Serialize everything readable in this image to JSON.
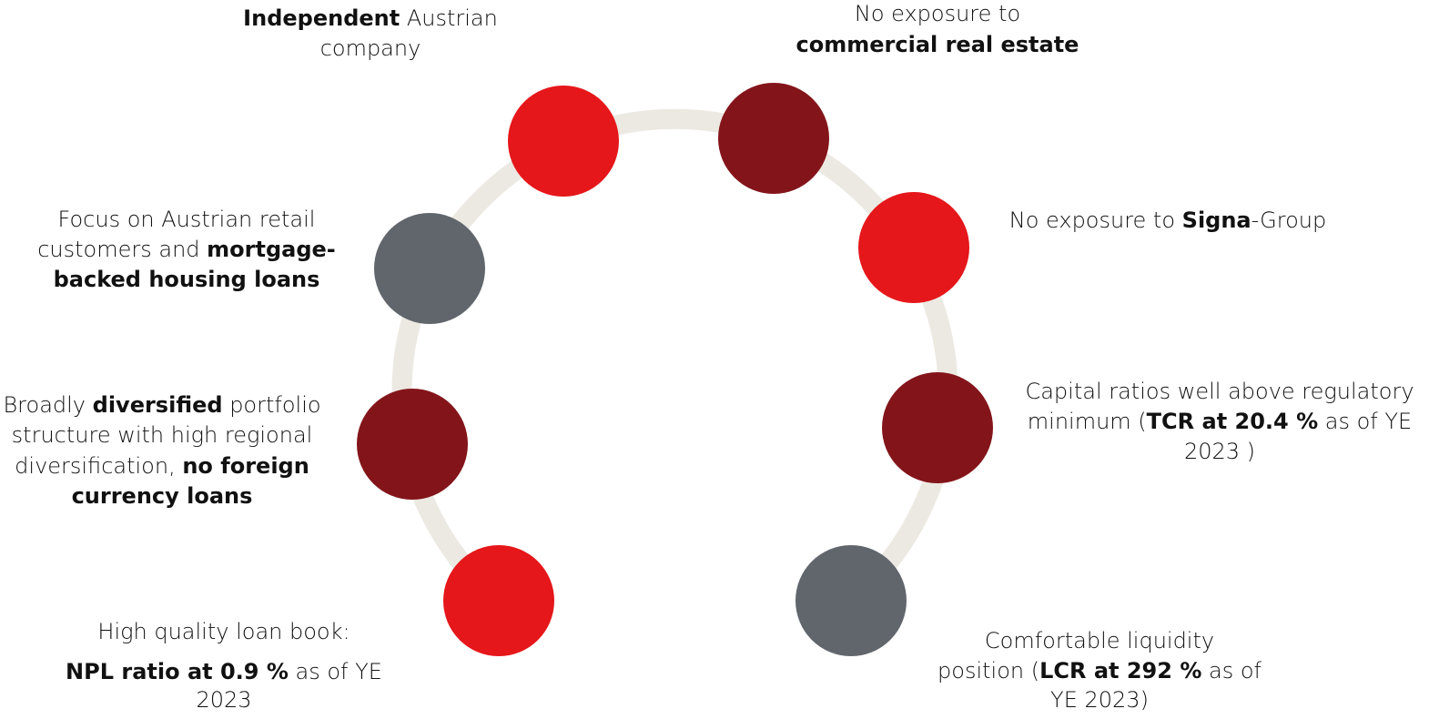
{
  "items": [
    {
      "color": "#e5171a",
      "lines": [
        [
          {
            "text": "Independent",
            "bold": true
          },
          {
            "text": " Austrian",
            "bold": false
          }
        ],
        [
          {
            "text": "company",
            "bold": false
          }
        ]
      ]
    },
    {
      "color": "#83151a",
      "lines": [
        [
          {
            "text": "No exposure to",
            "bold": false
          }
        ],
        [
          {
            "text": "commercial real estate",
            "bold": true
          }
        ]
      ]
    },
    {
      "color": "#e5171a",
      "lines": [
        [
          {
            "text": "No exposure to ",
            "bold": false
          },
          {
            "text": "Signa",
            "bold": true
          },
          {
            "text": "-Group",
            "bold": false
          }
        ]
      ]
    },
    {
      "color": "#83151a",
      "lines": [
        [
          {
            "text": "Capital ratios well above regulatory",
            "bold": false
          }
        ],
        [
          {
            "text": "minimum (",
            "bold": false
          },
          {
            "text": "TCR at 20.4 %",
            "bold": true
          },
          {
            "text": " as of YE",
            "bold": false
          }
        ],
        [
          {
            "text": "2023 )",
            "bold": false
          }
        ]
      ]
    },
    {
      "color": "#61666d",
      "lines": [
        [
          {
            "text": "Comfortable liquidity",
            "bold": false
          }
        ],
        [
          {
            "text": "position (",
            "bold": false
          },
          {
            "text": "LCR at 292 %",
            "bold": true
          },
          {
            "text": " as of",
            "bold": false
          }
        ],
        [
          {
            "text": "YE 2023)",
            "bold": false
          }
        ]
      ]
    },
    {
      "color": "#e5171a",
      "lines": [
        [
          {
            "text": "High quality loan book:",
            "bold": false
          }
        ],
        [
          {
            "text": "NPL ratio at 0.9 %",
            "bold": true
          },
          {
            "text": " as of YE",
            "bold": false
          }
        ],
        [
          {
            "text": "2023",
            "bold": false
          }
        ]
      ]
    },
    {
      "color": "#83151a",
      "lines": [
        [
          {
            "text": "Broadly ",
            "bold": false
          },
          {
            "text": "diversified",
            "bold": true
          },
          {
            "text": " portfolio",
            "bold": false
          }
        ],
        [
          {
            "text": "structure with high regional",
            "bold": false
          }
        ],
        [
          {
            "text": "diversification, ",
            "bold": false
          },
          {
            "text": "no foreign",
            "bold": true
          }
        ],
        [
          {
            "text": "currency loans",
            "bold": true
          }
        ]
      ]
    },
    {
      "color": "#61666d",
      "lines": [
        [
          {
            "text": "Focus on Austrian retail",
            "bold": false
          }
        ],
        [
          {
            "text": "customers and ",
            "bold": false
          },
          {
            "text": "mortgage-",
            "bold": true
          }
        ],
        [
          {
            "text": "backed housing loans",
            "bold": true
          }
        ]
      ]
    }
  ]
}
